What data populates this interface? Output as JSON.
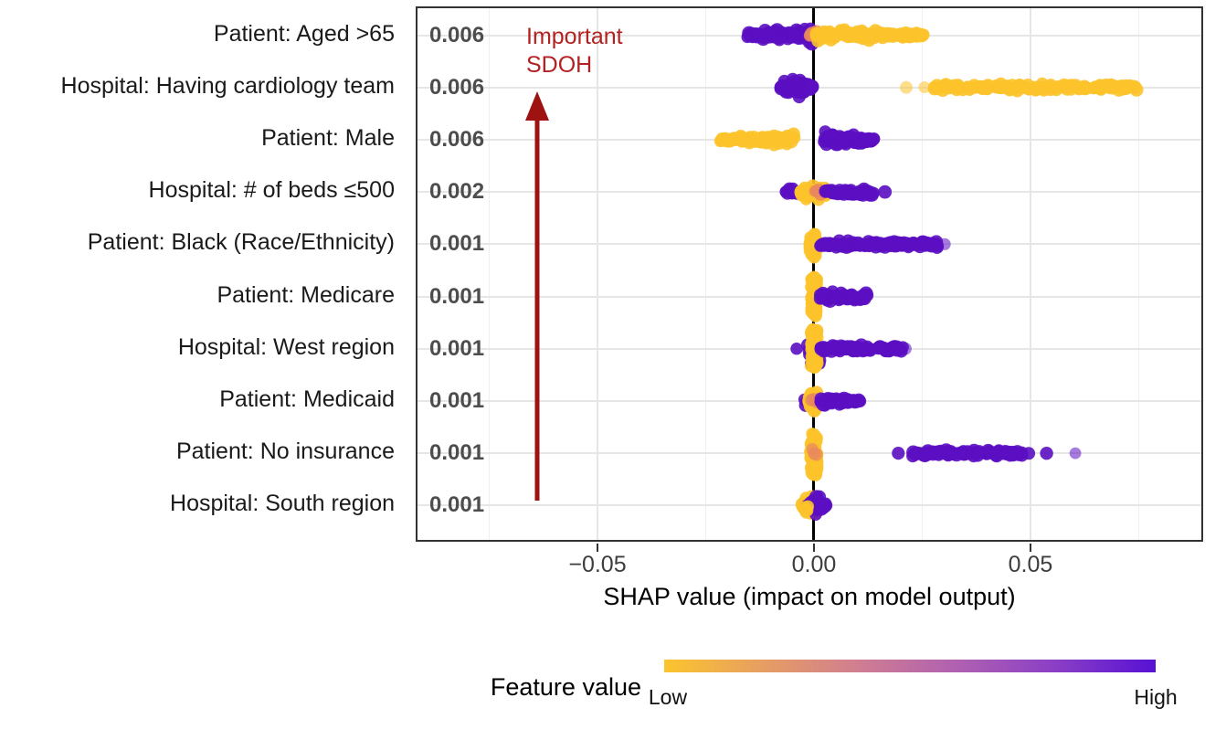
{
  "chart_data": {
    "type": "scatter",
    "subtype": "shap-beeswarm",
    "xlabel": "SHAP value (impact on model output)",
    "ylabel": "",
    "xlim": [
      -0.092,
      0.089
    ],
    "grid": true,
    "x_ticks": [
      {
        "value": -0.05,
        "label": "−0.05"
      },
      {
        "value": 0.0,
        "label": "0.00"
      },
      {
        "value": 0.05,
        "label": "0.05"
      }
    ],
    "x_minor_gridlines": [
      -0.075,
      -0.025,
      0.025,
      0.075
    ],
    "colors": {
      "low": "#FCC32B",
      "high": "#5B0EC2",
      "mid": "#E8875E"
    },
    "features": [
      {
        "label": "Patient: Aged >65",
        "mean_abs_shap": "0.006",
        "clusters": [
          {
            "color": "high",
            "x1": -0.0154,
            "x2": -0.0005,
            "n": 95,
            "spread": 12,
            "shape": "taper-left"
          },
          {
            "color": "mid",
            "x1": -0.001,
            "x2": 0.0006,
            "n": 7,
            "spread": 6,
            "shape": "flat",
            "opacity": 0.8
          },
          {
            "color": "low",
            "x1": 0.0003,
            "x2": 0.0256,
            "n": 115,
            "spread": 10,
            "shape": "taper-right"
          }
        ]
      },
      {
        "label": "Hospital: Having cardiology team",
        "mean_abs_shap": "0.006",
        "clusters": [
          {
            "color": "high",
            "x1": -0.0077,
            "x2": -0.0004,
            "n": 85,
            "spread": 13,
            "shape": "blob"
          },
          {
            "color": "low",
            "x1": 0.0213,
            "x2": 0.0255,
            "n": 2,
            "spread": 0.5,
            "shape": "flat",
            "opacity": 0.55
          },
          {
            "color": "low",
            "x1": 0.0278,
            "x2": 0.0745,
            "n": 130,
            "spread": 5,
            "shape": "flat"
          }
        ]
      },
      {
        "label": "Patient: Male",
        "mean_abs_shap": "0.006",
        "clusters": [
          {
            "color": "low",
            "x1": -0.0216,
            "x2": -0.0046,
            "n": 95,
            "spread": 9,
            "shape": "taper-left"
          },
          {
            "color": "high",
            "x1": 0.0022,
            "x2": 0.0138,
            "n": 85,
            "spread": 11,
            "shape": "taper-right"
          }
        ]
      },
      {
        "label": "Hospital: # of beds ≤500",
        "mean_abs_shap": "0.002",
        "clusters": [
          {
            "color": "high",
            "x1": -0.0066,
            "x2": -0.0034,
            "n": 14,
            "spread": 8,
            "shape": "blob"
          },
          {
            "color": "low",
            "x1": -0.0031,
            "x2": 0.0034,
            "n": 65,
            "spread": 14,
            "shape": "blob"
          },
          {
            "color": "mid",
            "x1": 0.0002,
            "x2": 0.0015,
            "n": 4,
            "spread": 5,
            "shape": "flat",
            "opacity": 0.8
          },
          {
            "color": "high",
            "x1": 0.0027,
            "x2": 0.0138,
            "n": 40,
            "spread": 5,
            "shape": "flat"
          },
          {
            "color": "high",
            "x1": 0.016,
            "x2": 0.0164,
            "n": 1,
            "spread": 0,
            "shape": "flat"
          }
        ]
      },
      {
        "label": "Patient: Black (Race/Ethnicity)",
        "mean_abs_shap": "0.001",
        "clusters": [
          {
            "color": "low",
            "x1": -0.001,
            "x2": 0.0008,
            "n": 55,
            "spread": 18,
            "shape": "blob"
          },
          {
            "color": "high",
            "x1": 0.0013,
            "x2": 0.0286,
            "n": 115,
            "spread": 5,
            "shape": "flat"
          },
          {
            "color": "high",
            "x1": 0.03,
            "x2": 0.0302,
            "n": 1,
            "spread": 0,
            "shape": "flat",
            "opacity": 0.55
          }
        ]
      },
      {
        "label": "Patient: Medicare",
        "mean_abs_shap": "0.001",
        "clusters": [
          {
            "color": "low",
            "x1": -0.0006,
            "x2": 0.0006,
            "n": 60,
            "spread": 22,
            "shape": "vbar"
          },
          {
            "color": "high",
            "x1": 0.0014,
            "x2": 0.0123,
            "n": 55,
            "spread": 6,
            "shape": "flat"
          }
        ]
      },
      {
        "label": "Hospital: West region",
        "mean_abs_shap": "0.001",
        "clusters": [
          {
            "color": "high",
            "x1": -0.0044,
            "x2": -0.004,
            "n": 1,
            "spread": 0,
            "shape": "flat"
          },
          {
            "color": "high",
            "x1": -0.0014,
            "x2": 0.0014,
            "n": 12,
            "spread": 17,
            "shape": "vbar"
          },
          {
            "color": "low",
            "x1": -0.0007,
            "x2": 0.0007,
            "n": 55,
            "spread": 21,
            "shape": "vbar"
          },
          {
            "color": "high",
            "x1": 0.0015,
            "x2": 0.013,
            "n": 50,
            "spread": 5,
            "shape": "flat"
          },
          {
            "color": "high",
            "x1": 0.0148,
            "x2": 0.0205,
            "n": 24,
            "spread": 4,
            "shape": "flat"
          },
          {
            "color": "high",
            "x1": 0.021,
            "x2": 0.0214,
            "n": 1,
            "spread": 0,
            "shape": "flat",
            "opacity": 0.55
          }
        ]
      },
      {
        "label": "Patient: Medicaid",
        "mean_abs_shap": "0.001",
        "clusters": [
          {
            "color": "high",
            "x1": -0.0022,
            "x2": 0.0016,
            "n": 14,
            "spread": 13,
            "shape": "blob"
          },
          {
            "color": "low",
            "x1": -0.0012,
            "x2": 0.0011,
            "n": 50,
            "spread": 16,
            "shape": "blob"
          },
          {
            "color": "mid",
            "x1": -0.0006,
            "x2": 0.0006,
            "n": 3,
            "spread": 7,
            "shape": "flat",
            "opacity": 0.75
          },
          {
            "color": "high",
            "x1": 0.0013,
            "x2": 0.0106,
            "n": 55,
            "spread": 7,
            "shape": "taper-right"
          }
        ]
      },
      {
        "label": "Patient: No insurance",
        "mean_abs_shap": "0.001",
        "clusters": [
          {
            "color": "low",
            "x1": -0.0007,
            "x2": 0.0007,
            "n": 65,
            "spread": 24,
            "shape": "vbar"
          },
          {
            "color": "mid",
            "x1": -0.0004,
            "x2": 0.0005,
            "n": 3,
            "spread": 9,
            "shape": "flat",
            "opacity": 0.7
          },
          {
            "color": "high",
            "x1": 0.0192,
            "x2": 0.0196,
            "n": 1,
            "spread": 0,
            "shape": "flat"
          },
          {
            "color": "high",
            "x1": 0.0227,
            "x2": 0.0484,
            "n": 95,
            "spread": 4,
            "shape": "flat"
          },
          {
            "color": "high",
            "x1": 0.0496,
            "x2": 0.0538,
            "n": 2,
            "spread": 0.5,
            "shape": "flat"
          },
          {
            "color": "high",
            "x1": 0.0601,
            "x2": 0.0605,
            "n": 1,
            "spread": 0,
            "shape": "flat",
            "opacity": 0.55
          }
        ]
      },
      {
        "label": "Hospital: South region",
        "mean_abs_shap": "0.001",
        "clusters": [
          {
            "color": "low",
            "x1": -0.0027,
            "x2": 0.0013,
            "n": 48,
            "spread": 14,
            "shape": "blob"
          },
          {
            "color": "mid",
            "x1": -0.0013,
            "x2": -0.0001,
            "n": 5,
            "spread": 7,
            "shape": "flat",
            "opacity": 0.8
          },
          {
            "color": "high",
            "x1": -0.0016,
            "x2": 0.0028,
            "n": 26,
            "spread": 13,
            "shape": "blob"
          },
          {
            "color": "low",
            "x1": -0.0022,
            "x2": -0.0014,
            "n": 4,
            "spread": 12,
            "shape": "blob"
          }
        ]
      }
    ],
    "annotation": {
      "lines": [
        "Important",
        "SDOH"
      ],
      "text_color": "#B32121",
      "arrow_color": "#9E1212"
    },
    "legend": {
      "title": "Feature value",
      "low_label": "Low",
      "high_label": "High",
      "position": "bottom",
      "gradient": [
        "#FBC52D",
        "#E79E62",
        "#CF7D92",
        "#AF60B2",
        "#8A3EC6",
        "#5711D4"
      ]
    }
  }
}
